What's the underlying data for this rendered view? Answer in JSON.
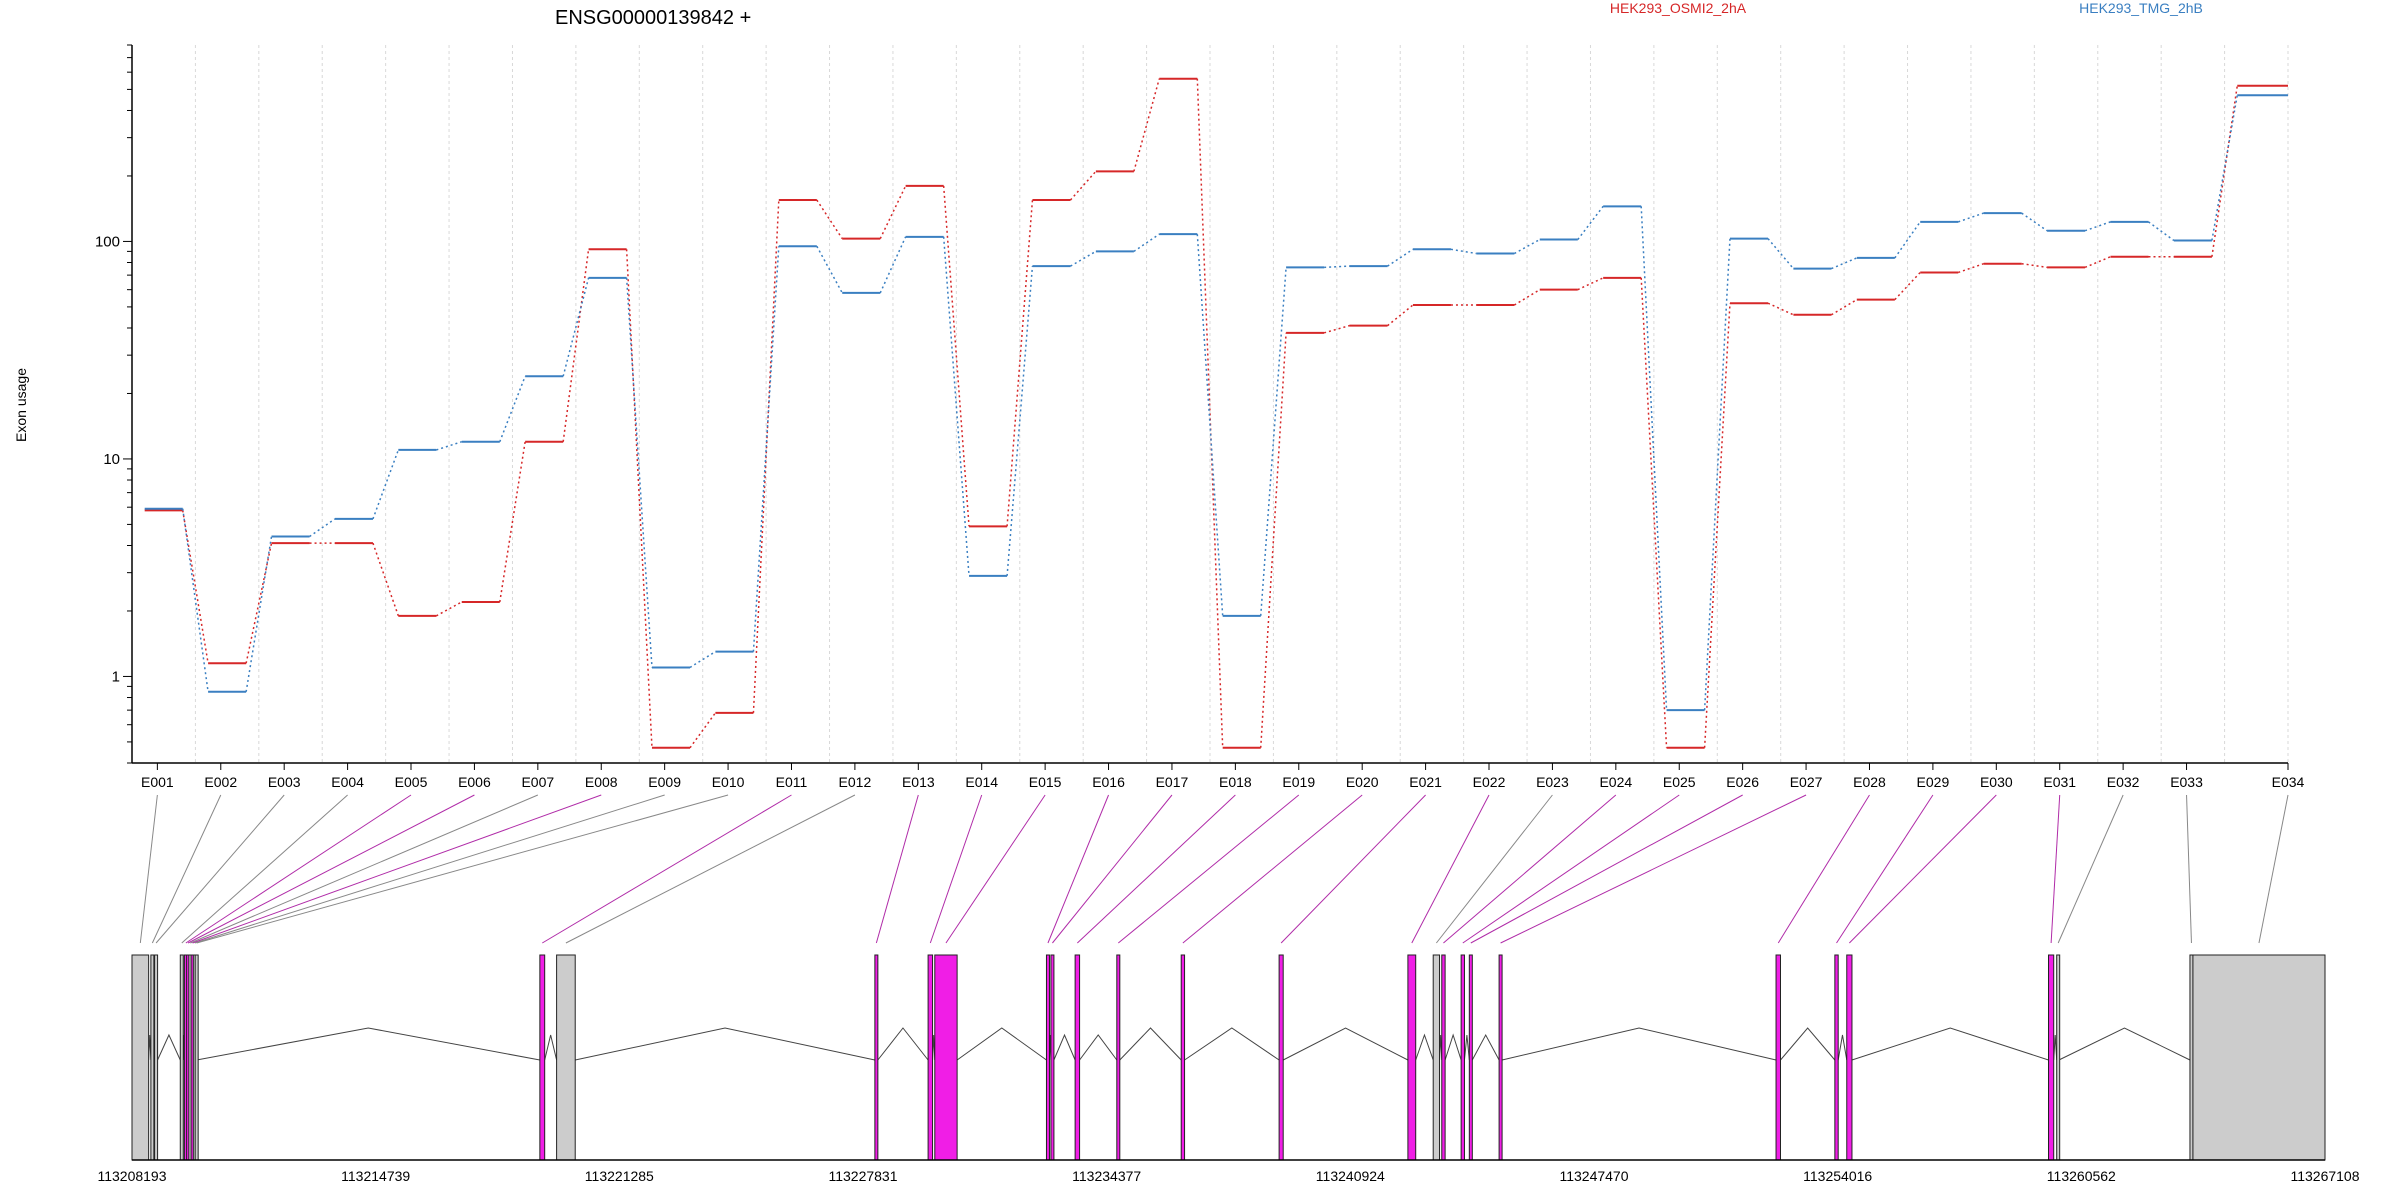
{
  "colors": {
    "series_a": "#d62728",
    "series_b": "#3a7fc1",
    "exon_highlight": "#f01ee6",
    "exon_plain": "#cccccc",
    "grid": "#d8d8d8",
    "connector_plain": "#888888",
    "connector_highlight": "#b02ca8"
  },
  "chart_data": {
    "type": "line",
    "title": "ENSG00000139842 +",
    "ylabel": "Exon usage",
    "yscale": "log",
    "ylim": [
      0.4,
      800
    ],
    "yticks": [
      1,
      10,
      100
    ],
    "ytick_labels": [
      "1",
      "10",
      "100"
    ],
    "categories": [
      "E001",
      "E002",
      "E003",
      "E004",
      "E005",
      "E006",
      "E007",
      "E008",
      "E009",
      "E010",
      "E011",
      "E012",
      "E013",
      "E014",
      "E015",
      "E016",
      "E017",
      "E018",
      "E019",
      "E020",
      "E021",
      "E022",
      "E023",
      "E024",
      "E025",
      "E026",
      "E027",
      "E028",
      "E029",
      "E030",
      "E031",
      "E032",
      "E033",
      "E034"
    ],
    "series": [
      {
        "name": "HEK293_OSMI2_2hA",
        "color": "#d62728",
        "values": [
          5.8,
          1.15,
          4.1,
          4.1,
          1.9,
          2.2,
          12,
          92,
          0.47,
          0.68,
          155,
          103,
          180,
          4.9,
          155,
          210,
          560,
          0.47,
          38,
          41,
          51,
          51,
          60,
          68,
          0.47,
          52,
          46,
          54,
          72,
          79,
          76,
          85,
          85,
          520
        ]
      },
      {
        "name": "HEK293_TMG_2hB",
        "color": "#3a7fc1",
        "values": [
          5.9,
          0.85,
          4.4,
          5.3,
          11,
          12,
          24,
          68,
          1.1,
          1.3,
          95,
          58,
          105,
          2.9,
          77,
          90,
          108,
          1.9,
          76,
          77,
          92,
          88,
          102,
          145,
          0.7,
          103,
          75,
          84,
          123,
          135,
          112,
          123,
          101,
          470
        ]
      }
    ],
    "gene_coordinates": {
      "start": 113208193,
      "end": 113267108,
      "tick_labels": [
        "113208193",
        "113214739",
        "113221285",
        "113227831",
        "113234377",
        "113240924",
        "113247470",
        "113254016",
        "113260562",
        "113267108"
      ]
    },
    "exons": [
      {
        "id": "E001",
        "start": 113208193,
        "end": 113208640,
        "highlight": false
      },
      {
        "id": "E002",
        "start": 113208700,
        "end": 113208760,
        "highlight": false
      },
      {
        "id": "E003",
        "start": 113208800,
        "end": 113208880,
        "highlight": false
      },
      {
        "id": "E004",
        "start": 113209490,
        "end": 113209570,
        "highlight": false
      },
      {
        "id": "E005",
        "start": 113209600,
        "end": 113209650,
        "highlight": true
      },
      {
        "id": "E006",
        "start": 113209660,
        "end": 113209710,
        "highlight": true
      },
      {
        "id": "E007",
        "start": 113209720,
        "end": 113209770,
        "highlight": false
      },
      {
        "id": "E008",
        "start": 113209780,
        "end": 113209830,
        "highlight": true
      },
      {
        "id": "E009",
        "start": 113209840,
        "end": 113209880,
        "highlight": false
      },
      {
        "id": "E010",
        "start": 113209890,
        "end": 113209930,
        "highlight": false
      },
      {
        "id": "E011",
        "start": 113219150,
        "end": 113219280,
        "highlight": true
      },
      {
        "id": "E012",
        "start": 113219600,
        "end": 113220100,
        "highlight": false
      },
      {
        "id": "E013",
        "start": 113228150,
        "end": 113228230,
        "highlight": true
      },
      {
        "id": "E014",
        "start": 113229580,
        "end": 113229700,
        "highlight": true
      },
      {
        "id": "E015",
        "start": 113229760,
        "end": 113230360,
        "highlight": true
      },
      {
        "id": "E016",
        "start": 113232760,
        "end": 113232840,
        "highlight": true
      },
      {
        "id": "E017",
        "start": 113232880,
        "end": 113232960,
        "highlight": true
      },
      {
        "id": "E018",
        "start": 113233530,
        "end": 113233650,
        "highlight": true
      },
      {
        "id": "E019",
        "start": 113234650,
        "end": 113234730,
        "highlight": true
      },
      {
        "id": "E020",
        "start": 113236380,
        "end": 113236470,
        "highlight": true
      },
      {
        "id": "E021",
        "start": 113239010,
        "end": 113239120,
        "highlight": true
      },
      {
        "id": "E022",
        "start": 113242470,
        "end": 113242680,
        "highlight": true
      },
      {
        "id": "E023",
        "start": 113243150,
        "end": 113243320,
        "highlight": false
      },
      {
        "id": "E024",
        "start": 113243380,
        "end": 113243470,
        "highlight": true
      },
      {
        "id": "E025",
        "start": 113243900,
        "end": 113243990,
        "highlight": true
      },
      {
        "id": "E026",
        "start": 113244120,
        "end": 113244200,
        "highlight": true
      },
      {
        "id": "E027",
        "start": 113244920,
        "end": 113245000,
        "highlight": true
      },
      {
        "id": "E028",
        "start": 113252360,
        "end": 113252480,
        "highlight": true
      },
      {
        "id": "E029",
        "start": 113253940,
        "end": 113254030,
        "highlight": true
      },
      {
        "id": "E030",
        "start": 113254260,
        "end": 113254400,
        "highlight": true
      },
      {
        "id": "E031",
        "start": 113259680,
        "end": 113259820,
        "highlight": true
      },
      {
        "id": "E032",
        "start": 113259900,
        "end": 113259960,
        "highlight": false
      },
      {
        "id": "E033",
        "start": 113263480,
        "end": 113263560,
        "highlight": false
      },
      {
        "id": "E034",
        "start": 113263560,
        "end": 113267108,
        "highlight": false
      }
    ],
    "legend_placement": "top"
  }
}
